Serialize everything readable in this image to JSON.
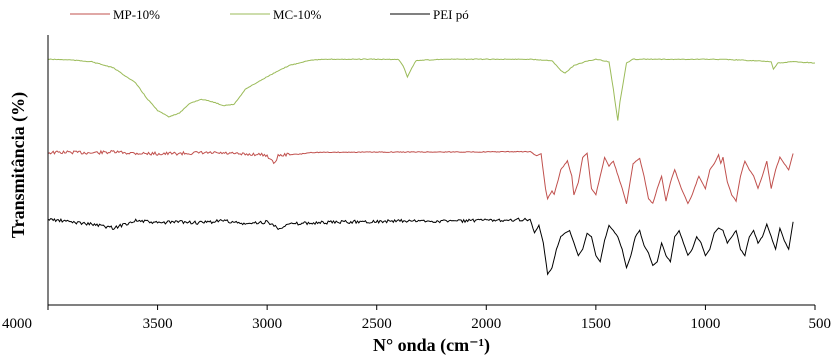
{
  "chart_data": {
    "type": "line",
    "title": "",
    "xlabel": "N° onda (cm⁻¹)",
    "ylabel": "Transmitância (%)",
    "xlim": [
      4000,
      500
    ],
    "x_reversed": true,
    "x_ticks": [
      4000,
      3500,
      3000,
      2500,
      2000,
      1500,
      1000,
      500
    ],
    "y_ticks_shown": false,
    "grid": false,
    "legend_position": "top",
    "series": [
      {
        "name": "MP-10%",
        "color": "#c0504d",
        "points": [
          [
            4000,
            1.3
          ],
          [
            3900,
            1.0
          ],
          [
            3800,
            1.5
          ],
          [
            3700,
            0.8
          ],
          [
            3600,
            1.8
          ],
          [
            3500,
            2.2
          ],
          [
            3400,
            2.0
          ],
          [
            3300,
            1.5
          ],
          [
            3200,
            1.8
          ],
          [
            3100,
            2.8
          ],
          [
            3050,
            2.5
          ],
          [
            3000,
            3.5
          ],
          [
            2970,
            10
          ],
          [
            2950,
            4
          ],
          [
            2920,
            3
          ],
          [
            2850,
            2.5
          ],
          [
            2800,
            1.2
          ],
          [
            2700,
            1.0
          ],
          [
            2500,
            0.9
          ],
          [
            2300,
            0.8
          ],
          [
            2000,
            0.7
          ],
          [
            1900,
            0.6
          ],
          [
            1800,
            0.5
          ],
          [
            1770,
            4
          ],
          [
            1750,
            2
          ],
          [
            1730,
            30
          ],
          [
            1720,
            38
          ],
          [
            1700,
            32
          ],
          [
            1690,
            35
          ],
          [
            1660,
            15
          ],
          [
            1630,
            8
          ],
          [
            1610,
            20
          ],
          [
            1600,
            35
          ],
          [
            1580,
            25
          ],
          [
            1560,
            5
          ],
          [
            1540,
            2
          ],
          [
            1520,
            30
          ],
          [
            1500,
            35
          ],
          [
            1480,
            20
          ],
          [
            1460,
            5
          ],
          [
            1440,
            12
          ],
          [
            1420,
            8
          ],
          [
            1380,
            30
          ],
          [
            1360,
            42
          ],
          [
            1330,
            10
          ],
          [
            1300,
            6
          ],
          [
            1280,
            20
          ],
          [
            1260,
            38
          ],
          [
            1240,
            42
          ],
          [
            1220,
            30
          ],
          [
            1200,
            20
          ],
          [
            1180,
            40
          ],
          [
            1160,
            25
          ],
          [
            1140,
            15
          ],
          [
            1110,
            30
          ],
          [
            1080,
            42
          ],
          [
            1060,
            35
          ],
          [
            1030,
            20
          ],
          [
            1000,
            30
          ],
          [
            980,
            15
          ],
          [
            960,
            10
          ],
          [
            940,
            3
          ],
          [
            930,
            10
          ],
          [
            920,
            5
          ],
          [
            900,
            25
          ],
          [
            880,
            35
          ],
          [
            860,
            40
          ],
          [
            840,
            20
          ],
          [
            820,
            8
          ],
          [
            800,
            15
          ],
          [
            780,
            20
          ],
          [
            760,
            30
          ],
          [
            740,
            20
          ],
          [
            720,
            8
          ],
          [
            700,
            30
          ],
          [
            680,
            15
          ],
          [
            660,
            5
          ],
          [
            640,
            10
          ],
          [
            620,
            15
          ],
          [
            600,
            2
          ]
        ]
      },
      {
        "name": "MC-10%",
        "color": "#9bbb59",
        "points": [
          [
            4000,
            1.0
          ],
          [
            3900,
            1.5
          ],
          [
            3800,
            3.0
          ],
          [
            3700,
            8
          ],
          [
            3600,
            20
          ],
          [
            3550,
            32
          ],
          [
            3500,
            42
          ],
          [
            3450,
            47
          ],
          [
            3400,
            44
          ],
          [
            3350,
            36
          ],
          [
            3300,
            33
          ],
          [
            3250,
            35
          ],
          [
            3200,
            38
          ],
          [
            3150,
            37
          ],
          [
            3100,
            25
          ],
          [
            3000,
            15
          ],
          [
            2900,
            6
          ],
          [
            2800,
            1.5
          ],
          [
            2700,
            1.0
          ],
          [
            2500,
            1.0
          ],
          [
            2400,
            1.2
          ],
          [
            2380,
            6
          ],
          [
            2360,
            15
          ],
          [
            2340,
            8
          ],
          [
            2320,
            2
          ],
          [
            2200,
            1.0
          ],
          [
            2000,
            1.0
          ],
          [
            1800,
            1.0
          ],
          [
            1700,
            2
          ],
          [
            1660,
            10
          ],
          [
            1640,
            12
          ],
          [
            1600,
            6
          ],
          [
            1550,
            3
          ],
          [
            1500,
            1
          ],
          [
            1440,
            3
          ],
          [
            1420,
            25
          ],
          [
            1400,
            50
          ],
          [
            1390,
            35
          ],
          [
            1360,
            4
          ],
          [
            1330,
            1
          ],
          [
            1200,
            1.0
          ],
          [
            1000,
            1.0
          ],
          [
            900,
            1.2
          ],
          [
            800,
            2
          ],
          [
            700,
            3
          ],
          [
            690,
            9
          ],
          [
            670,
            4
          ],
          [
            600,
            3
          ],
          [
            500,
            4
          ]
        ]
      },
      {
        "name": "PEI pó",
        "color": "#000000",
        "points": [
          [
            4000,
            1.0
          ],
          [
            3900,
            3.0
          ],
          [
            3800,
            5.0
          ],
          [
            3700,
            8.0
          ],
          [
            3600,
            2.0
          ],
          [
            3500,
            4.0
          ],
          [
            3400,
            3.0
          ],
          [
            3300,
            4.0
          ],
          [
            3200,
            2.0
          ],
          [
            3100,
            5.0
          ],
          [
            3000,
            3.0
          ],
          [
            2950,
            8.0
          ],
          [
            2900,
            5.0
          ],
          [
            2800,
            4.0
          ],
          [
            2600,
            3.0
          ],
          [
            2400,
            2.5
          ],
          [
            2200,
            2.5
          ],
          [
            2000,
            2.0
          ],
          [
            1900,
            1.5
          ],
          [
            1800,
            1.0
          ],
          [
            1780,
            12
          ],
          [
            1760,
            6
          ],
          [
            1740,
            20
          ],
          [
            1720,
            45
          ],
          [
            1700,
            40
          ],
          [
            1680,
            25
          ],
          [
            1660,
            15
          ],
          [
            1640,
            12
          ],
          [
            1620,
            10
          ],
          [
            1600,
            20
          ],
          [
            1580,
            30
          ],
          [
            1560,
            25
          ],
          [
            1540,
            12
          ],
          [
            1520,
            15
          ],
          [
            1500,
            30
          ],
          [
            1480,
            35
          ],
          [
            1460,
            18
          ],
          [
            1440,
            6
          ],
          [
            1420,
            10
          ],
          [
            1400,
            15
          ],
          [
            1380,
            25
          ],
          [
            1360,
            40
          ],
          [
            1340,
            30
          ],
          [
            1320,
            15
          ],
          [
            1300,
            10
          ],
          [
            1280,
            22
          ],
          [
            1260,
            28
          ],
          [
            1240,
            38
          ],
          [
            1220,
            35
          ],
          [
            1200,
            20
          ],
          [
            1180,
            30
          ],
          [
            1160,
            35
          ],
          [
            1140,
            15
          ],
          [
            1120,
            10
          ],
          [
            1100,
            20
          ],
          [
            1080,
            30
          ],
          [
            1060,
            25
          ],
          [
            1040,
            15
          ],
          [
            1020,
            20
          ],
          [
            1000,
            30
          ],
          [
            980,
            25
          ],
          [
            960,
            12
          ],
          [
            940,
            8
          ],
          [
            920,
            10
          ],
          [
            900,
            20
          ],
          [
            880,
            15
          ],
          [
            860,
            10
          ],
          [
            840,
            25
          ],
          [
            820,
            30
          ],
          [
            800,
            15
          ],
          [
            780,
            10
          ],
          [
            760,
            20
          ],
          [
            740,
            15
          ],
          [
            720,
            5
          ],
          [
            700,
            15
          ],
          [
            680,
            25
          ],
          [
            660,
            8
          ],
          [
            640,
            18
          ],
          [
            620,
            25
          ],
          [
            600,
            3
          ]
        ]
      }
    ]
  }
}
